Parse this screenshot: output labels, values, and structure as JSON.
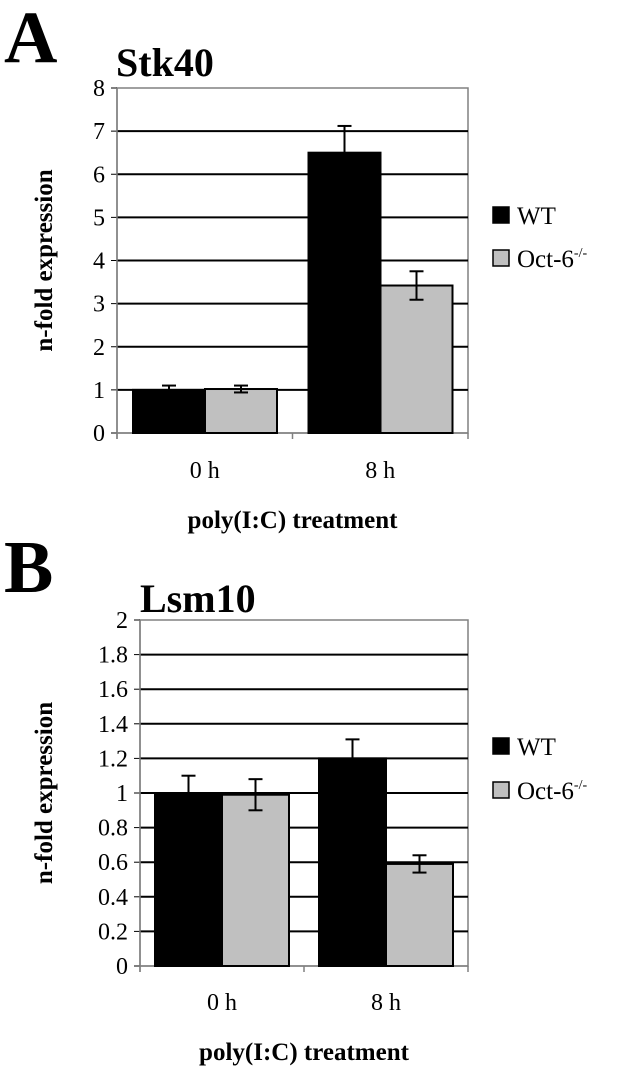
{
  "chart_data": [
    {
      "type": "bar",
      "panel": "A",
      "title": "Stk40",
      "xlabel": "poly(I:C) treatment",
      "ylabel": "n-fold expression",
      "categories": [
        "0 h",
        "8 h"
      ],
      "ylim": [
        0,
        8
      ],
      "yticks": [
        0,
        1,
        2,
        3,
        4,
        5,
        6,
        7,
        8
      ],
      "ytick_labels": [
        "0",
        "1",
        "2",
        "3",
        "4",
        "5",
        "6",
        "7",
        "8"
      ],
      "grid": true,
      "legend_position": "right",
      "series": [
        {
          "name": "WT",
          "sup": "",
          "color": "#000000",
          "values": [
            1.0,
            6.5
          ],
          "errors": [
            0.1,
            0.62
          ]
        },
        {
          "name": "Oct-6",
          "sup": "-/-",
          "color": "#c0c0c0",
          "values": [
            1.02,
            3.42
          ],
          "errors": [
            0.08,
            0.33
          ]
        }
      ]
    },
    {
      "type": "bar",
      "panel": "B",
      "title": "Lsm10",
      "xlabel": "poly(I:C) treatment",
      "ylabel": "n-fold expression",
      "categories": [
        "0 h",
        "8 h"
      ],
      "ylim": [
        0,
        2
      ],
      "yticks": [
        0,
        0.2,
        0.4,
        0.6,
        0.8,
        1,
        1.2,
        1.4,
        1.6,
        1.8,
        2
      ],
      "ytick_labels": [
        "0",
        "0.2",
        "0.4",
        "0.6",
        "0.8",
        "1",
        "1.2",
        "1.4",
        "1.6",
        "1.8",
        "2"
      ],
      "grid": true,
      "legend_position": "right",
      "series": [
        {
          "name": "WT",
          "sup": "",
          "color": "#000000",
          "values": [
            1.0,
            1.2
          ],
          "errors": [
            0.1,
            0.11
          ]
        },
        {
          "name": "Oct-6",
          "sup": "-/-",
          "color": "#c0c0c0",
          "values": [
            0.99,
            0.59
          ],
          "errors": [
            0.09,
            0.05
          ]
        }
      ]
    }
  ]
}
